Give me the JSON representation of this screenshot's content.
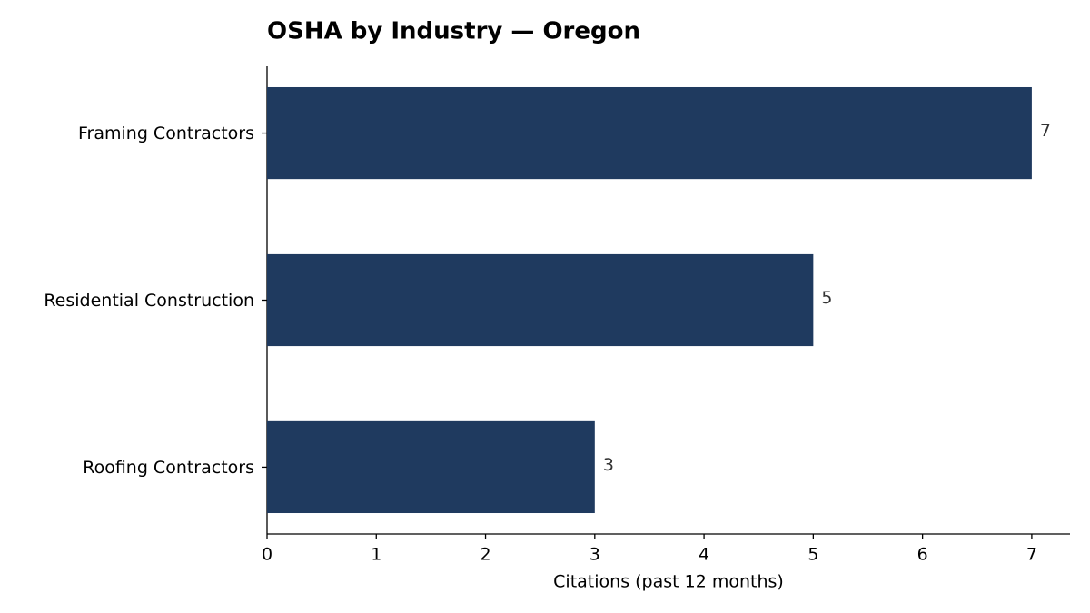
{
  "chart_data": {
    "type": "barh",
    "title": "OSHA by Industry — Oregon",
    "xlabel": "Citations (past 12 months)",
    "categories": [
      "Framing Contractors",
      "Residential Construction",
      "Roofing Contractors"
    ],
    "values": [
      7,
      5,
      3
    ],
    "color": "#1f3a5f",
    "xlim": [
      0,
      7.35
    ],
    "xticks": [
      0,
      1,
      2,
      3,
      4,
      5,
      6,
      7
    ],
    "grid": false
  }
}
